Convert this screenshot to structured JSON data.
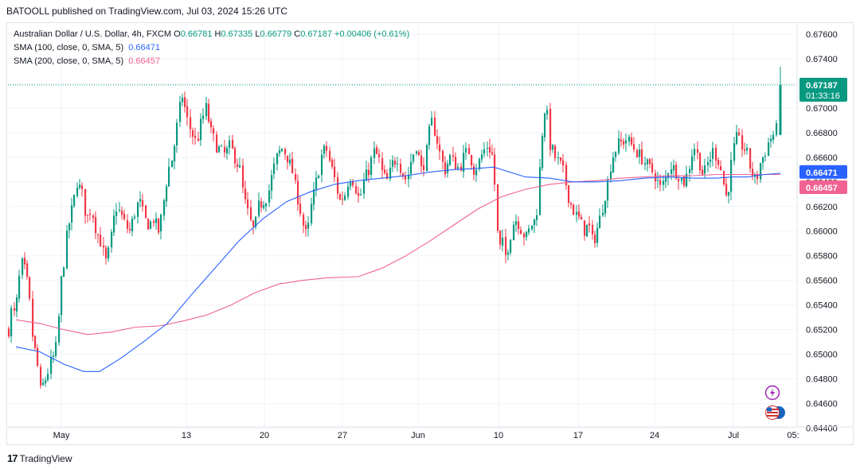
{
  "header": {
    "publisher": "BATOOLL published on TradingView.com, Jul 03, 2024 15:26 UTC"
  },
  "legend": {
    "instrument": "Australian Dollar / U.S. Dollar, 4h, FXCM",
    "open_label": "O",
    "open": "0.66781",
    "high_label": "H",
    "high": "0.67335",
    "low_label": "L",
    "low": "0.66779",
    "close_label": "C",
    "close": "0.67187",
    "change": "+0.00406 (+0.61%)",
    "sma100_label": "SMA (100, close, 0, SMA, 5)",
    "sma100_value": "0.66471",
    "sma200_label": "SMA (200, close, 0, SMA, 5)",
    "sma200_value": "0.66457"
  },
  "colors": {
    "up": "#089981",
    "down": "#f23645",
    "sma100": "#2962ff",
    "sma200": "#f06292",
    "price_tag": "#089981"
  },
  "price_tag": {
    "price": "0.67187",
    "countdown": "01:33:16"
  },
  "footer": {
    "brand": "TradingView"
  },
  "chart_data": {
    "type": "candlestick",
    "x_axis_ticks": [
      "May",
      "13",
      "20",
      "27",
      "Jun",
      "10",
      "17",
      "24",
      "Jul",
      "05:"
    ],
    "y_axis_ticks": [
      "0.67600",
      "0.67400",
      "0.67200",
      "0.67000",
      "0.66800",
      "0.66600",
      "0.66400",
      "0.66200",
      "0.66000",
      "0.65800",
      "0.65600",
      "0.65400",
      "0.65200",
      "0.65000",
      "0.64800",
      "0.64600",
      "0.64400"
    ],
    "ylim": [
      0.6441,
      0.6769
    ],
    "grid": true,
    "close_anchors": [
      [
        0,
        0.652
      ],
      [
        4,
        0.654
      ],
      [
        8,
        0.653
      ],
      [
        14,
        0.6568
      ],
      [
        18,
        0.6575
      ],
      [
        24,
        0.6555
      ],
      [
        30,
        0.6515
      ],
      [
        36,
        0.649
      ],
      [
        40,
        0.647
      ],
      [
        46,
        0.648
      ],
      [
        52,
        0.6492
      ],
      [
        58,
        0.65
      ],
      [
        62,
        0.652
      ],
      [
        66,
        0.656
      ],
      [
        70,
        0.658
      ],
      [
        74,
        0.66
      ],
      [
        80,
        0.662
      ],
      [
        86,
        0.664
      ],
      [
        92,
        0.663
      ],
      [
        98,
        0.661
      ],
      [
        104,
        0.662
      ],
      [
        110,
        0.66
      ],
      [
        116,
        0.659
      ],
      [
        122,
        0.6575
      ],
      [
        128,
        0.659
      ],
      [
        134,
        0.662
      ],
      [
        140,
        0.6615
      ],
      [
        146,
        0.6605
      ],
      [
        152,
        0.66
      ],
      [
        158,
        0.6615
      ],
      [
        164,
        0.6625
      ],
      [
        170,
        0.661
      ],
      [
        176,
        0.6605
      ],
      [
        182,
        0.661
      ],
      [
        188,
        0.66
      ],
      [
        194,
        0.662
      ],
      [
        200,
        0.665
      ],
      [
        206,
        0.666
      ],
      [
        212,
        0.669
      ],
      [
        218,
        0.671
      ],
      [
        224,
        0.669
      ],
      [
        230,
        0.668
      ],
      [
        236,
        0.667
      ],
      [
        242,
        0.669
      ],
      [
        248,
        0.67
      ],
      [
        254,
        0.668
      ],
      [
        260,
        0.667
      ],
      [
        266,
        0.6665
      ],
      [
        272,
        0.6662
      ],
      [
        278,
        0.667
      ],
      [
        284,
        0.666
      ],
      [
        290,
        0.665
      ],
      [
        296,
        0.6625
      ],
      [
        302,
        0.661
      ],
      [
        308,
        0.66
      ],
      [
        314,
        0.662
      ],
      [
        320,
        0.6625
      ],
      [
        326,
        0.663
      ],
      [
        332,
        0.665
      ],
      [
        338,
        0.6662
      ],
      [
        344,
        0.6668
      ],
      [
        350,
        0.666
      ],
      [
        356,
        0.6648
      ],
      [
        362,
        0.663
      ],
      [
        368,
        0.661
      ],
      [
        374,
        0.6595
      ],
      [
        380,
        0.662
      ],
      [
        386,
        0.664
      ],
      [
        392,
        0.666
      ],
      [
        398,
        0.6668
      ],
      [
        404,
        0.6655
      ],
      [
        410,
        0.664
      ],
      [
        416,
        0.6625
      ],
      [
        422,
        0.663
      ],
      [
        428,
        0.6645
      ],
      [
        434,
        0.664
      ],
      [
        440,
        0.6625
      ],
      [
        446,
        0.664
      ],
      [
        452,
        0.665
      ],
      [
        458,
        0.6665
      ],
      [
        464,
        0.666
      ],
      [
        470,
        0.6645
      ],
      [
        476,
        0.664
      ],
      [
        482,
        0.6655
      ],
      [
        488,
        0.666
      ],
      [
        494,
        0.6648
      ],
      [
        500,
        0.664
      ],
      [
        506,
        0.666
      ],
      [
        512,
        0.667
      ],
      [
        518,
        0.665
      ],
      [
        524,
        0.666
      ],
      [
        530,
        0.669
      ],
      [
        536,
        0.668
      ],
      [
        542,
        0.666
      ],
      [
        548,
        0.665
      ],
      [
        554,
        0.666
      ],
      [
        560,
        0.6655
      ],
      [
        566,
        0.665
      ],
      [
        572,
        0.6662
      ],
      [
        578,
        0.6665
      ],
      [
        584,
        0.665
      ],
      [
        590,
        0.6655
      ],
      [
        596,
        0.6665
      ],
      [
        602,
        0.667
      ],
      [
        608,
        0.666
      ],
      [
        613,
        0.6605
      ],
      [
        616,
        0.6585
      ],
      [
        620,
        0.659
      ],
      [
        624,
        0.658
      ],
      [
        628,
        0.659
      ],
      [
        632,
        0.6605
      ],
      [
        638,
        0.661
      ],
      [
        644,
        0.66
      ],
      [
        650,
        0.6595
      ],
      [
        656,
        0.6605
      ],
      [
        662,
        0.661
      ],
      [
        666,
        0.664
      ],
      [
        670,
        0.668
      ],
      [
        674,
        0.6705
      ],
      [
        680,
        0.667
      ],
      [
        686,
        0.666
      ],
      [
        692,
        0.6655
      ],
      [
        698,
        0.6645
      ],
      [
        704,
        0.6625
      ],
      [
        710,
        0.6615
      ],
      [
        716,
        0.661
      ],
      [
        722,
        0.66
      ],
      [
        728,
        0.6605
      ],
      [
        734,
        0.659
      ],
      [
        740,
        0.6605
      ],
      [
        746,
        0.662
      ],
      [
        752,
        0.664
      ],
      [
        758,
        0.666
      ],
      [
        764,
        0.667
      ],
      [
        770,
        0.6672
      ],
      [
        776,
        0.6675
      ],
      [
        782,
        0.667
      ],
      [
        788,
        0.6665
      ],
      [
        794,
        0.666
      ],
      [
        800,
        0.6655
      ],
      [
        806,
        0.665
      ],
      [
        812,
        0.6645
      ],
      [
        818,
        0.6635
      ],
      [
        824,
        0.664
      ],
      [
        830,
        0.6655
      ],
      [
        836,
        0.665
      ],
      [
        842,
        0.6645
      ],
      [
        848,
        0.664
      ],
      [
        854,
        0.665
      ],
      [
        860,
        0.667
      ],
      [
        866,
        0.666
      ],
      [
        872,
        0.6645
      ],
      [
        878,
        0.6655
      ],
      [
        884,
        0.6665
      ],
      [
        890,
        0.666
      ],
      [
        896,
        0.6645
      ],
      [
        902,
        0.6625
      ],
      [
        908,
        0.666
      ],
      [
        914,
        0.6675
      ],
      [
        920,
        0.667
      ],
      [
        926,
        0.6665
      ],
      [
        932,
        0.665
      ],
      [
        938,
        0.664
      ],
      [
        944,
        0.6655
      ],
      [
        950,
        0.6665
      ],
      [
        956,
        0.6675
      ],
      [
        962,
        0.668
      ],
      [
        966,
        0.6685
      ],
      [
        970,
        0.6719
      ]
    ],
    "sma100": [
      [
        10,
        0.6506
      ],
      [
        40,
        0.6502
      ],
      [
        70,
        0.6492
      ],
      [
        95,
        0.6486
      ],
      [
        115,
        0.6486
      ],
      [
        140,
        0.6496
      ],
      [
        170,
        0.651
      ],
      [
        200,
        0.6525
      ],
      [
        230,
        0.6548
      ],
      [
        260,
        0.657
      ],
      [
        290,
        0.6592
      ],
      [
        320,
        0.661
      ],
      [
        350,
        0.6624
      ],
      [
        380,
        0.6632
      ],
      [
        410,
        0.6638
      ],
      [
        440,
        0.6641
      ],
      [
        470,
        0.6643
      ],
      [
        500,
        0.6645
      ],
      [
        530,
        0.6648
      ],
      [
        560,
        0.665
      ],
      [
        590,
        0.6651
      ],
      [
        610,
        0.6652
      ],
      [
        625,
        0.6649
      ],
      [
        650,
        0.6644
      ],
      [
        680,
        0.6643
      ],
      [
        710,
        0.664
      ],
      [
        740,
        0.664
      ],
      [
        770,
        0.6641
      ],
      [
        800,
        0.6643
      ],
      [
        830,
        0.6644
      ],
      [
        860,
        0.6643
      ],
      [
        890,
        0.6643
      ],
      [
        910,
        0.6644
      ],
      [
        930,
        0.6644
      ],
      [
        950,
        0.6646
      ],
      [
        970,
        0.6647
      ]
    ],
    "sma200": [
      [
        10,
        0.6528
      ],
      [
        40,
        0.6525
      ],
      [
        70,
        0.652
      ],
      [
        100,
        0.6516
      ],
      [
        130,
        0.6518
      ],
      [
        160,
        0.6522
      ],
      [
        190,
        0.6523
      ],
      [
        220,
        0.6527
      ],
      [
        250,
        0.6532
      ],
      [
        280,
        0.654
      ],
      [
        310,
        0.655
      ],
      [
        340,
        0.6557
      ],
      [
        370,
        0.656
      ],
      [
        400,
        0.6562
      ],
      [
        440,
        0.6563
      ],
      [
        470,
        0.657
      ],
      [
        500,
        0.658
      ],
      [
        530,
        0.6592
      ],
      [
        560,
        0.6605
      ],
      [
        590,
        0.6618
      ],
      [
        620,
        0.6628
      ],
      [
        650,
        0.6634
      ],
      [
        680,
        0.6638
      ],
      [
        710,
        0.664
      ],
      [
        740,
        0.6641
      ],
      [
        770,
        0.6643
      ],
      [
        800,
        0.6644
      ],
      [
        830,
        0.6645
      ],
      [
        860,
        0.6645
      ],
      [
        890,
        0.6646
      ],
      [
        920,
        0.6646
      ],
      [
        950,
        0.6646
      ],
      [
        970,
        0.6646
      ]
    ],
    "last_price": 0.67187,
    "sma100_last": 0.66471,
    "sma200_last": 0.66457
  }
}
